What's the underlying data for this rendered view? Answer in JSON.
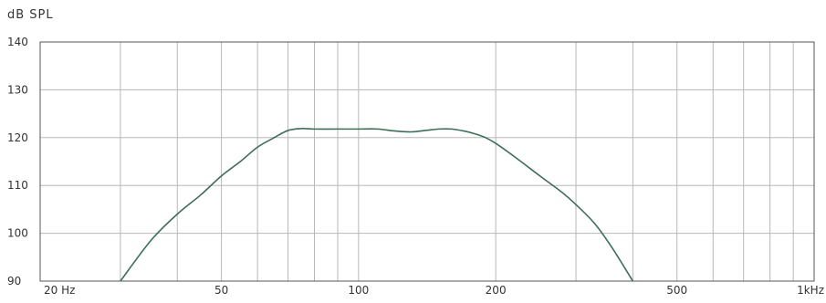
{
  "chart_data": {
    "type": "line",
    "title": "",
    "ylabel": "dB SPL",
    "xlabel": "",
    "x_scale": "log",
    "xlim": [
      20,
      1000
    ],
    "ylim": [
      90,
      140
    ],
    "grid": true,
    "y_ticks": [
      90,
      100,
      110,
      120,
      130,
      140
    ],
    "x_tick_labels": [
      {
        "value": 20,
        "label": "20 Hz"
      },
      {
        "value": 50,
        "label": "50"
      },
      {
        "value": 100,
        "label": "100"
      },
      {
        "value": 200,
        "label": "200"
      },
      {
        "value": 500,
        "label": "500"
      },
      {
        "value": 1000,
        "label": "1kHz"
      }
    ],
    "x_gridlines": [
      30,
      40,
      50,
      60,
      70,
      80,
      90,
      100,
      200,
      300,
      400,
      500,
      600,
      700,
      800,
      900,
      1000
    ],
    "series": [
      {
        "color": "#3d6e58",
        "x": [
          30,
          35,
          40,
          45,
          50,
          55,
          60,
          65,
          70,
          75,
          80,
          90,
          100,
          110,
          120,
          130,
          140,
          150,
          160,
          170,
          180,
          190,
          200,
          220,
          250,
          280,
          300,
          330,
          360,
          400
        ],
        "y": [
          90,
          98.5,
          104,
          108,
          112,
          115,
          118,
          119.9,
          121.5,
          121.9,
          121.8,
          121.8,
          121.8,
          121.8,
          121.4,
          121.2,
          121.5,
          121.8,
          121.8,
          121.4,
          120.8,
          120,
          118.8,
          116,
          112,
          108.5,
          106,
          102,
          97,
          90
        ]
      }
    ]
  }
}
